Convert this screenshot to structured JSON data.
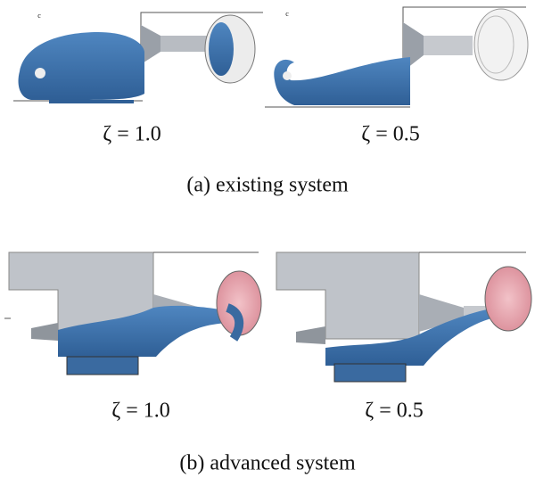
{
  "panels": [
    {
      "cases": [
        "ζ  =  1.0",
        "ζ  =  0.5"
      ],
      "caption": "(a)  existing  system"
    },
    {
      "cases": [
        "ζ  =  1.0",
        "ζ  =  0.5"
      ],
      "caption": "(b)  advanced  system"
    }
  ]
}
